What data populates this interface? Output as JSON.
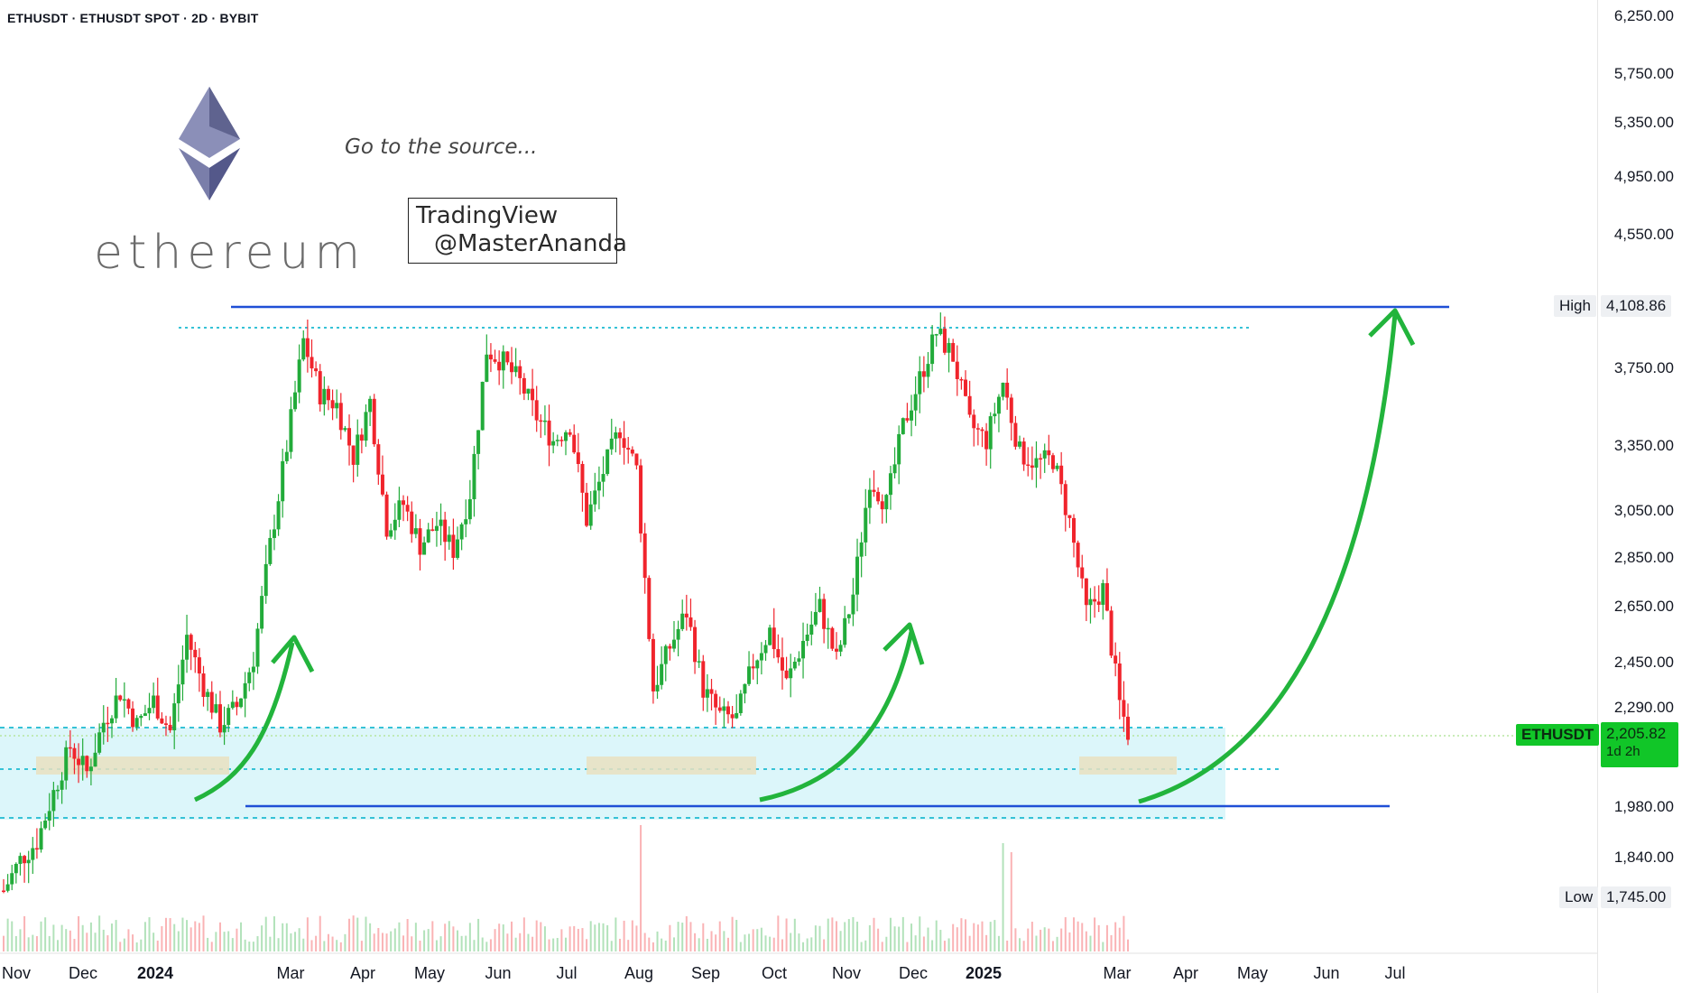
{
  "header": {
    "symbol_line": "ETHUSDT · ETHUSDT SPOT · 2D · BYBIT"
  },
  "annotations": {
    "tagline": "Go to the source...",
    "watermark_line1": "TradingView",
    "watermark_line2": "@MasterAnanda",
    "logo_word": "ethereum",
    "logo_icon": "ethereum-diamond-icon"
  },
  "colors": {
    "up": "#22ab3a",
    "down": "#f0242c",
    "level_line": "#1f4fd6",
    "support_zone": "#bfeef5",
    "arrow": "#22b43c",
    "price_tag": "#11c628"
  },
  "y_axis": {
    "labels": [
      "6,250.00",
      "5,750.00",
      "5,350.00",
      "4,950.00",
      "4,550.00",
      "3,750.00",
      "3,350.00",
      "3,050.00",
      "2,850.00",
      "2,650.00",
      "2,450.00",
      "2,290.00",
      "1,980.00",
      "1,840.00"
    ],
    "high_label": "High",
    "high_value": "4,108.86",
    "low_label": "Low",
    "low_value": "1,745.00",
    "current_symbol": "ETHUSDT",
    "current_price": "2,205.82",
    "countdown": "1d 2h"
  },
  "x_axis": {
    "labels": [
      {
        "text": "Nov",
        "bold": false
      },
      {
        "text": "Dec",
        "bold": false
      },
      {
        "text": "2024",
        "bold": true
      },
      {
        "text": "Mar",
        "bold": false
      },
      {
        "text": "Apr",
        "bold": false
      },
      {
        "text": "May",
        "bold": false
      },
      {
        "text": "Jun",
        "bold": false
      },
      {
        "text": "Jul",
        "bold": false
      },
      {
        "text": "Aug",
        "bold": false
      },
      {
        "text": "Sep",
        "bold": false
      },
      {
        "text": "Oct",
        "bold": false
      },
      {
        "text": "Nov",
        "bold": false
      },
      {
        "text": "Dec",
        "bold": false
      },
      {
        "text": "2025",
        "bold": true
      },
      {
        "text": "Mar",
        "bold": false
      },
      {
        "text": "Apr",
        "bold": false
      },
      {
        "text": "May",
        "bold": false
      },
      {
        "text": "Jun",
        "bold": false
      },
      {
        "text": "Jul",
        "bold": false
      }
    ]
  },
  "chart_data": {
    "type": "candlestick",
    "scale": "log",
    "resistance": 4108.86,
    "support": 1980,
    "support_zone": [
      1940,
      2210
    ],
    "price_path": [
      [
        0,
        1750
      ],
      [
        4,
        1830
      ],
      [
        8,
        1880
      ],
      [
        12,
        2020
      ],
      [
        16,
        2160
      ],
      [
        20,
        2080
      ],
      [
        24,
        2240
      ],
      [
        28,
        2340
      ],
      [
        32,
        2230
      ],
      [
        36,
        2310
      ],
      [
        40,
        2210
      ],
      [
        44,
        2540
      ],
      [
        48,
        2360
      ],
      [
        52,
        2230
      ],
      [
        56,
        2290
      ],
      [
        60,
        2460
      ],
      [
        64,
        2900
      ],
      [
        68,
        3350
      ],
      [
        72,
        3910
      ],
      [
        76,
        3620
      ],
      [
        80,
        3560
      ],
      [
        84,
        3300
      ],
      [
        88,
        3580
      ],
      [
        92,
        2980
      ],
      [
        96,
        3080
      ],
      [
        100,
        2900
      ],
      [
        104,
        2990
      ],
      [
        108,
        2880
      ],
      [
        112,
        3130
      ],
      [
        116,
        3860
      ],
      [
        120,
        3790
      ],
      [
        124,
        3680
      ],
      [
        128,
        3500
      ],
      [
        132,
        3380
      ],
      [
        136,
        3460
      ],
      [
        140,
        3010
      ],
      [
        144,
        3230
      ],
      [
        148,
        3440
      ],
      [
        152,
        3240
      ],
      [
        156,
        2350
      ],
      [
        160,
        2500
      ],
      [
        164,
        2630
      ],
      [
        168,
        2350
      ],
      [
        172,
        2260
      ],
      [
        176,
        2250
      ],
      [
        180,
        2440
      ],
      [
        184,
        2560
      ],
      [
        188,
        2370
      ],
      [
        192,
        2520
      ],
      [
        196,
        2650
      ],
      [
        200,
        2450
      ],
      [
        204,
        2700
      ],
      [
        208,
        3200
      ],
      [
        212,
        3080
      ],
      [
        216,
        3450
      ],
      [
        220,
        3700
      ],
      [
        224,
        3960
      ],
      [
        228,
        3820
      ],
      [
        232,
        3460
      ],
      [
        236,
        3380
      ],
      [
        240,
        3680
      ],
      [
        244,
        3320
      ],
      [
        248,
        3270
      ],
      [
        252,
        3290
      ],
      [
        256,
        3000
      ],
      [
        260,
        2630
      ],
      [
        264,
        2720
      ],
      [
        268,
        2300
      ],
      [
        270,
        2205.82
      ]
    ],
    "volume_hint": "low-to-moderate with spikes at Aug 2024 and Feb 2025"
  }
}
